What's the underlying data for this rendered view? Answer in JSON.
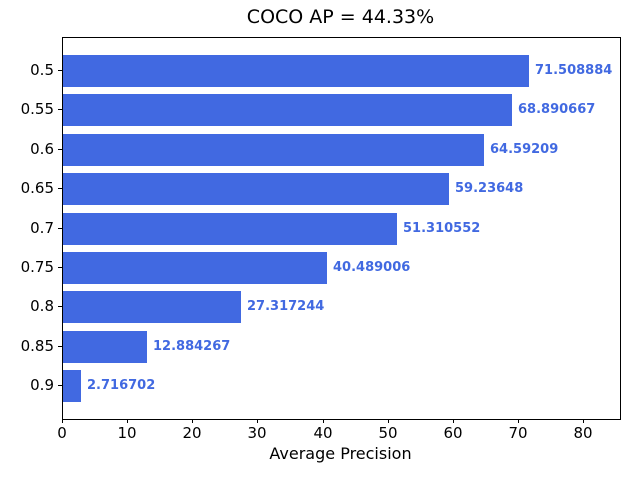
{
  "chart_data": {
    "type": "bar",
    "orientation": "horizontal",
    "title": "COCO AP = 44.33%",
    "xlabel": "Average Precision",
    "ylabel": "",
    "categories": [
      "0.5",
      "0.55",
      "0.6",
      "0.65",
      "0.7",
      "0.75",
      "0.8",
      "0.85",
      "0.9"
    ],
    "values": [
      71.508884,
      68.890667,
      64.59209,
      59.23648,
      51.310552,
      40.489006,
      27.317244,
      12.884267,
      2.716702
    ],
    "value_labels": [
      "71.508884",
      "68.890667",
      "64.59209",
      "59.23648",
      "51.310552",
      "40.489006",
      "27.317244",
      "12.884267",
      "2.716702"
    ],
    "x_ticks": [
      0,
      10,
      20,
      30,
      40,
      50,
      60,
      70,
      80
    ],
    "xlim": [
      0,
      85.5
    ],
    "grid": false,
    "legend": null,
    "bar_color": "#4169e1",
    "value_label_color": "#4169e1",
    "axis_color": "#000000"
  }
}
